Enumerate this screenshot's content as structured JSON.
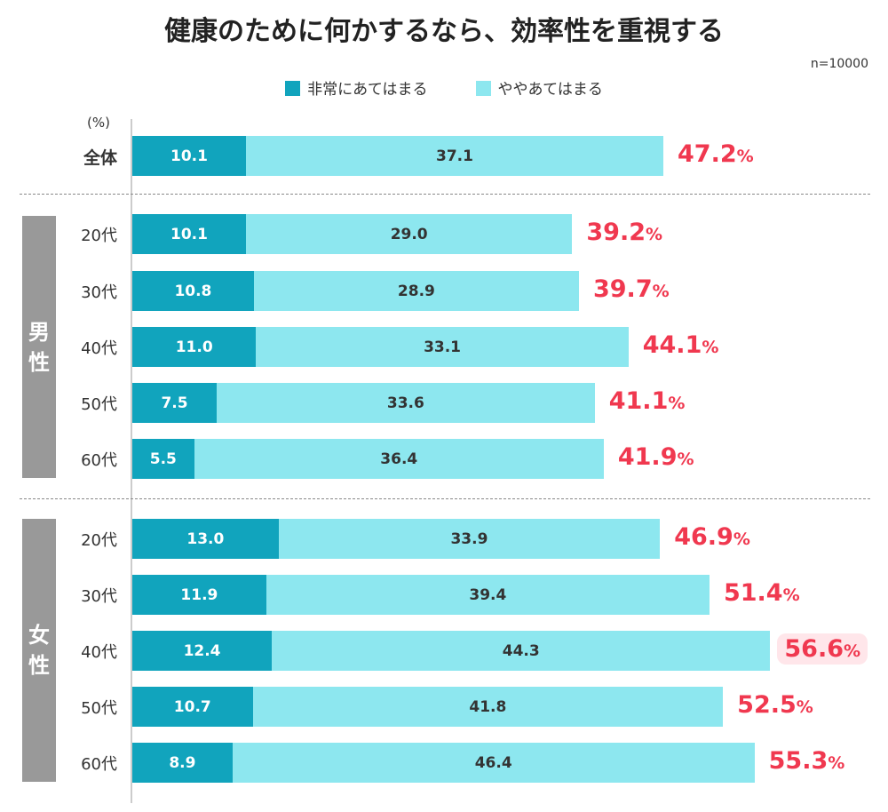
{
  "chart_data": {
    "type": "bar",
    "stacked": true,
    "orientation": "horizontal",
    "title": "健康のために何かするなら、効率性を重視する",
    "sample": "n=10000",
    "unit": "(%)",
    "legend": [
      "非常にあてはまる",
      "ややあてはまる"
    ],
    "colors": {
      "series1": "#11a4bd",
      "series2": "#8de7ef",
      "total": "#f0384f",
      "highlight": "#ffe6ea"
    },
    "groups": [
      {
        "label": "",
        "rows": [
          {
            "category": "全体",
            "values": [
              10.1,
              37.1
            ],
            "total": "47.2"
          }
        ]
      },
      {
        "label": "男性",
        "rows": [
          {
            "category": "20代",
            "values": [
              10.1,
              29.0
            ],
            "total": "39.2"
          },
          {
            "category": "30代",
            "values": [
              10.8,
              28.9
            ],
            "total": "39.7"
          },
          {
            "category": "40代",
            "values": [
              11.0,
              33.1
            ],
            "total": "44.1"
          },
          {
            "category": "50代",
            "values": [
              7.5,
              33.6
            ],
            "total": "41.1"
          },
          {
            "category": "60代",
            "values": [
              5.5,
              36.4
            ],
            "total": "41.9"
          }
        ]
      },
      {
        "label": "女性",
        "rows": [
          {
            "category": "20代",
            "values": [
              13.0,
              33.9
            ],
            "total": "46.9"
          },
          {
            "category": "30代",
            "values": [
              11.9,
              39.4
            ],
            "total": "51.4"
          },
          {
            "category": "40代",
            "values": [
              12.4,
              44.3
            ],
            "total": "56.6",
            "highlight": true
          },
          {
            "category": "50代",
            "values": [
              10.7,
              41.8
            ],
            "total": "52.5"
          },
          {
            "category": "60代",
            "values": [
              8.9,
              46.4
            ],
            "total": "55.3"
          }
        ]
      }
    ]
  }
}
